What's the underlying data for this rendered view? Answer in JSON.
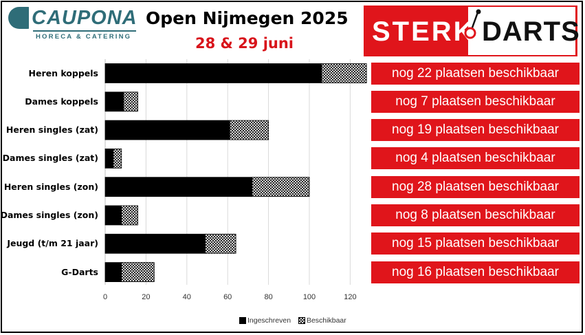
{
  "header": {
    "sponsor_left": {
      "name": "CAUPONA",
      "tagline": "HORECA & CATERING",
      "color": "#2f6d78"
    },
    "title": "Open Nijmegen 2025",
    "subtitle": "28 & 29 juni",
    "subtitle_color": "#d8141b",
    "sponsor_right": {
      "word1": "STERK",
      "word2": "DARTS",
      "color": "#e0151b"
    }
  },
  "chart_data": {
    "type": "bar",
    "orientation": "horizontal",
    "stacked": true,
    "categories": [
      "Heren koppels",
      "Dames koppels",
      "Heren singles (zat)",
      "Dames singles (zat)",
      "Heren singles (zon)",
      "Dames singles (zon)",
      "Jeugd (t/m 21 jaar)",
      "G-Darts"
    ],
    "series": [
      {
        "name": "Ingeschreven",
        "values": [
          106,
          9,
          61,
          4,
          72,
          8,
          49,
          8
        ],
        "color": "#000000",
        "pattern": "solid"
      },
      {
        "name": "Beschikbaar",
        "values": [
          22,
          7,
          19,
          4,
          28,
          8,
          15,
          16
        ],
        "color": "#ffffff",
        "pattern": "crosshatch"
      }
    ],
    "xlim": [
      0,
      128
    ],
    "xticks": [
      "0",
      "20",
      "40",
      "60",
      "80",
      "100",
      "120"
    ],
    "xtick_values": [
      0,
      20,
      40,
      60,
      80,
      100,
      120
    ],
    "grid": true,
    "legend_position": "bottom",
    "annotations": [
      "nog 22 plaatsen beschikbaar",
      "nog 7 plaatsen beschikbaar",
      "nog 19 plaatsen beschikbaar",
      "nog 4 plaatsen beschikbaar",
      "nog 28 plaatsen beschikbaar",
      "nog 8 plaatsen beschikbaar",
      "nog 15 plaatsen beschikbaar",
      "nog 16 plaatsen beschikbaar"
    ],
    "annotation_color": "#e0151b"
  }
}
